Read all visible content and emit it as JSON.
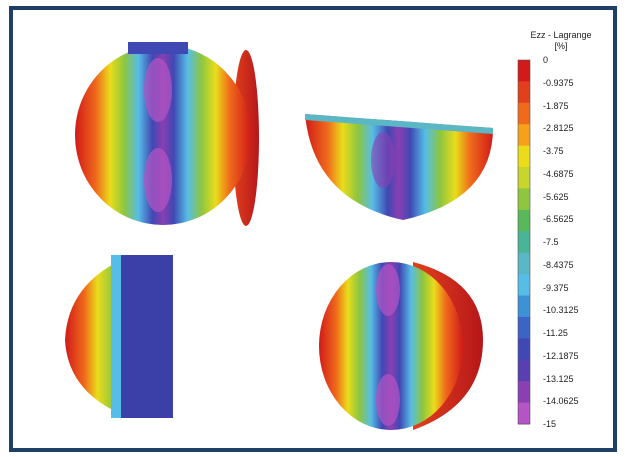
{
  "colorbar": {
    "title_line1": "Ezz - Lagrange",
    "title_line2": "[%]",
    "ticks": [
      "0",
      "-0.9375",
      "-1.875",
      "-2.8125",
      "-3.75",
      "-4.6875",
      "-5.625",
      "-6.5625",
      "-7.5",
      "-8.4375",
      "-9.375",
      "-10.3125",
      "-11.25",
      "-12.1875",
      "-13.125",
      "-14.0625",
      "-15"
    ],
    "colors": [
      "#d11a1a",
      "#e2401c",
      "#ef6a1b",
      "#f5a21a",
      "#eadc1a",
      "#c8d52c",
      "#8ec63f",
      "#58b85b",
      "#49b497",
      "#5bb6c5",
      "#56bde6",
      "#3d92d6",
      "#3b64c4",
      "#4048b3",
      "#5a3fb0",
      "#8a3fb3",
      "#b554c4"
    ]
  },
  "specimens": [
    {
      "name": "full-cylinder-view"
    },
    {
      "name": "half-cylinder-horizontal-view"
    },
    {
      "name": "quarter-cylinder-view"
    },
    {
      "name": "half-cylinder-vertical-view"
    }
  ]
}
